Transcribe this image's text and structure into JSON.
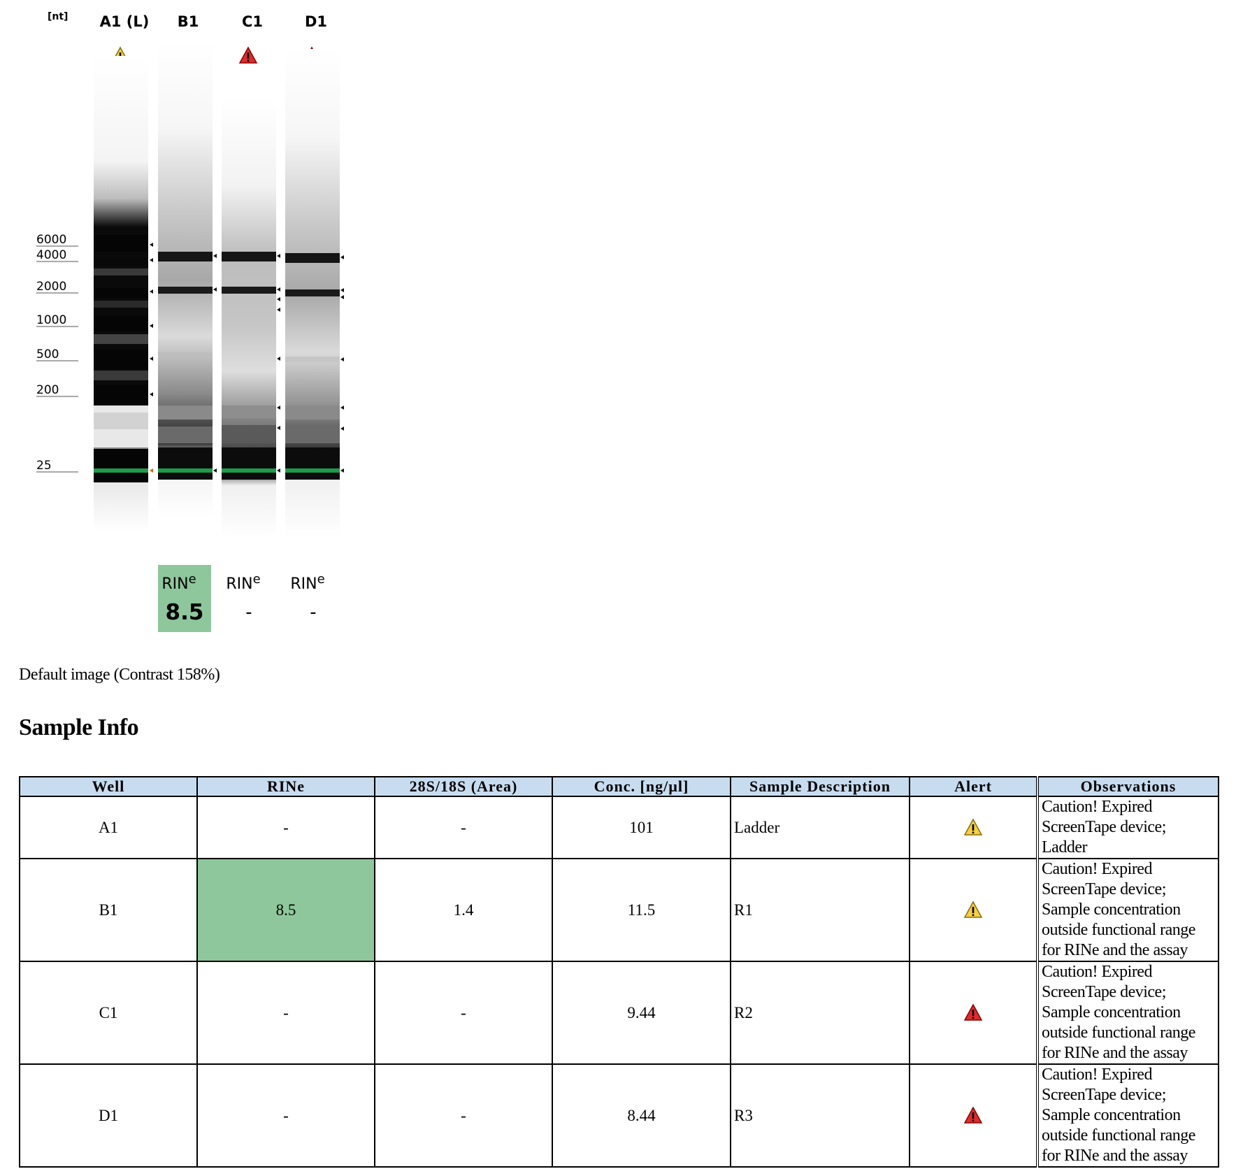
{
  "gel": {
    "unit_label": "[nt]",
    "lanes": [
      {
        "id": "A1 (L)",
        "alert": "warning"
      },
      {
        "id": "B1",
        "alert": "warning"
      },
      {
        "id": "C1",
        "alert": "error"
      },
      {
        "id": "D1",
        "alert": "error"
      }
    ],
    "size_markers": [
      "6000",
      "4000",
      "2000",
      "1000",
      "500",
      "200",
      "25"
    ],
    "rine_boxes": [
      {
        "label": "RIN",
        "sup": "e",
        "value": "8.5",
        "highlight": true
      },
      {
        "label": "RIN",
        "sup": "e",
        "value": "-",
        "highlight": false
      },
      {
        "label": "RIN",
        "sup": "e",
        "value": "-",
        "highlight": false
      }
    ],
    "colors": {
      "warning": "#f5d142",
      "error": "#e02b2b",
      "rine_good": "#8ec79b",
      "lower_marker": "#1e9a4a"
    }
  },
  "caption": "Default image (Contrast 158%)",
  "section_title": "Sample Info",
  "table": {
    "headers": [
      "Well",
      "RINe",
      "28S/18S (Area)",
      "Conc. [ng/µl]",
      "Sample Description",
      "Alert",
      "Observations"
    ],
    "rows": [
      {
        "well": "A1",
        "rine": "-",
        "ratio": "-",
        "conc": "101",
        "desc": "Ladder",
        "alert": "warning",
        "obs": [
          "Caution! Expired",
          "ScreenTape device;",
          "Ladder"
        ]
      },
      {
        "well": "B1",
        "rine": "8.5",
        "ratio": "1.4",
        "conc": "11.5",
        "desc": "R1",
        "alert": "warning",
        "rine_highlight": true,
        "obs": [
          "Caution! Expired",
          "ScreenTape device;",
          "Sample concentration",
          "outside functional range",
          "for RINe and the assay"
        ]
      },
      {
        "well": "C1",
        "rine": "-",
        "ratio": "-",
        "conc": "9.44",
        "desc": "R2",
        "alert": "error",
        "obs": [
          "Caution! Expired",
          "ScreenTape device;",
          "Sample concentration",
          "outside functional range",
          "for RINe and the assay"
        ]
      },
      {
        "well": "D1",
        "rine": "-",
        "ratio": "-",
        "conc": "8.44",
        "desc": "R3",
        "alert": "error",
        "obs": [
          "Caution! Expired",
          "ScreenTape device;",
          "Sample concentration",
          "outside functional range",
          "for RINe and the assay"
        ]
      }
    ]
  }
}
